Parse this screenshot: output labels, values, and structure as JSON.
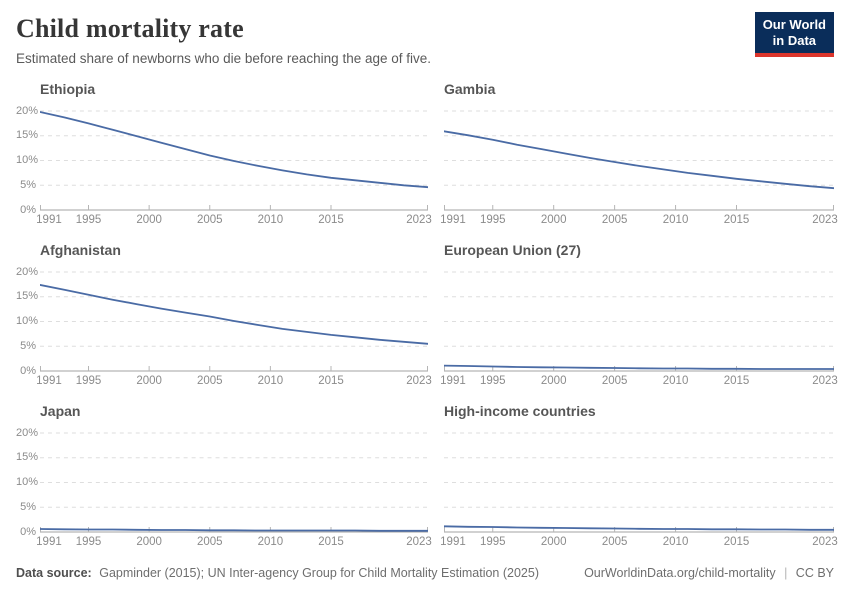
{
  "header": {
    "title": "Child mortality rate",
    "subtitle": "Estimated share of newborns who die before reaching the age of five.",
    "logo": {
      "line1": "Our World",
      "line2": "in Data",
      "bg_color": "#0a2d5a",
      "accent_color": "#dc352c"
    }
  },
  "chart_data": {
    "type": "line",
    "layout": "small-multiples-2x3",
    "x": [
      1991,
      1993,
      1995,
      1997,
      1999,
      2001,
      2003,
      2005,
      2007,
      2009,
      2011,
      2013,
      2015,
      2017,
      2019,
      2021,
      2023
    ],
    "series": [
      {
        "name": "Ethiopia",
        "values": [
          19.8,
          18.7,
          17.5,
          16.2,
          14.9,
          13.6,
          12.3,
          11.0,
          9.9,
          8.9,
          8.0,
          7.2,
          6.5,
          6.0,
          5.5,
          5.0,
          4.6
        ]
      },
      {
        "name": "Gambia",
        "values": [
          15.9,
          15.1,
          14.2,
          13.2,
          12.3,
          11.4,
          10.5,
          9.7,
          8.9,
          8.2,
          7.5,
          6.9,
          6.3,
          5.8,
          5.3,
          4.8,
          4.4
        ]
      },
      {
        "name": "Afghanistan",
        "values": [
          17.4,
          16.4,
          15.4,
          14.4,
          13.5,
          12.6,
          11.8,
          11.0,
          10.1,
          9.3,
          8.5,
          7.9,
          7.3,
          6.8,
          6.3,
          5.9,
          5.5
        ]
      },
      {
        "name": "European Union (27)",
        "values": [
          1.1,
          1.0,
          0.9,
          0.8,
          0.75,
          0.7,
          0.65,
          0.6,
          0.55,
          0.5,
          0.5,
          0.45,
          0.45,
          0.4,
          0.4,
          0.4,
          0.4
        ]
      },
      {
        "name": "Japan",
        "values": [
          0.6,
          0.55,
          0.5,
          0.5,
          0.45,
          0.4,
          0.4,
          0.35,
          0.35,
          0.3,
          0.3,
          0.3,
          0.3,
          0.3,
          0.25,
          0.25,
          0.25
        ]
      },
      {
        "name": "High-income countries",
        "values": [
          1.15,
          1.05,
          1.0,
          0.9,
          0.85,
          0.8,
          0.75,
          0.7,
          0.65,
          0.6,
          0.6,
          0.55,
          0.55,
          0.5,
          0.5,
          0.45,
          0.45
        ]
      }
    ],
    "ylim": [
      0,
      20
    ],
    "yticks": [
      20,
      15,
      10,
      5,
      0
    ],
    "ytick_labels": [
      "20%",
      "15%",
      "10%",
      "5%",
      "0%"
    ],
    "xticks": [
      1991,
      1995,
      2000,
      2005,
      2010,
      2015,
      2023
    ],
    "grid": true,
    "line_color": "#4a6ba5",
    "grid_color": "#dedede",
    "axis_color": "#a3a3a3",
    "tick_color": "#b5b5b5"
  },
  "footer": {
    "source_label": "Data source:",
    "source_text": "Gapminder (2015); UN Inter-agency Group for Child Mortality Estimation (2025)",
    "url": "OurWorldinData.org/child-mortality",
    "separator": "|",
    "license": "CC BY"
  }
}
